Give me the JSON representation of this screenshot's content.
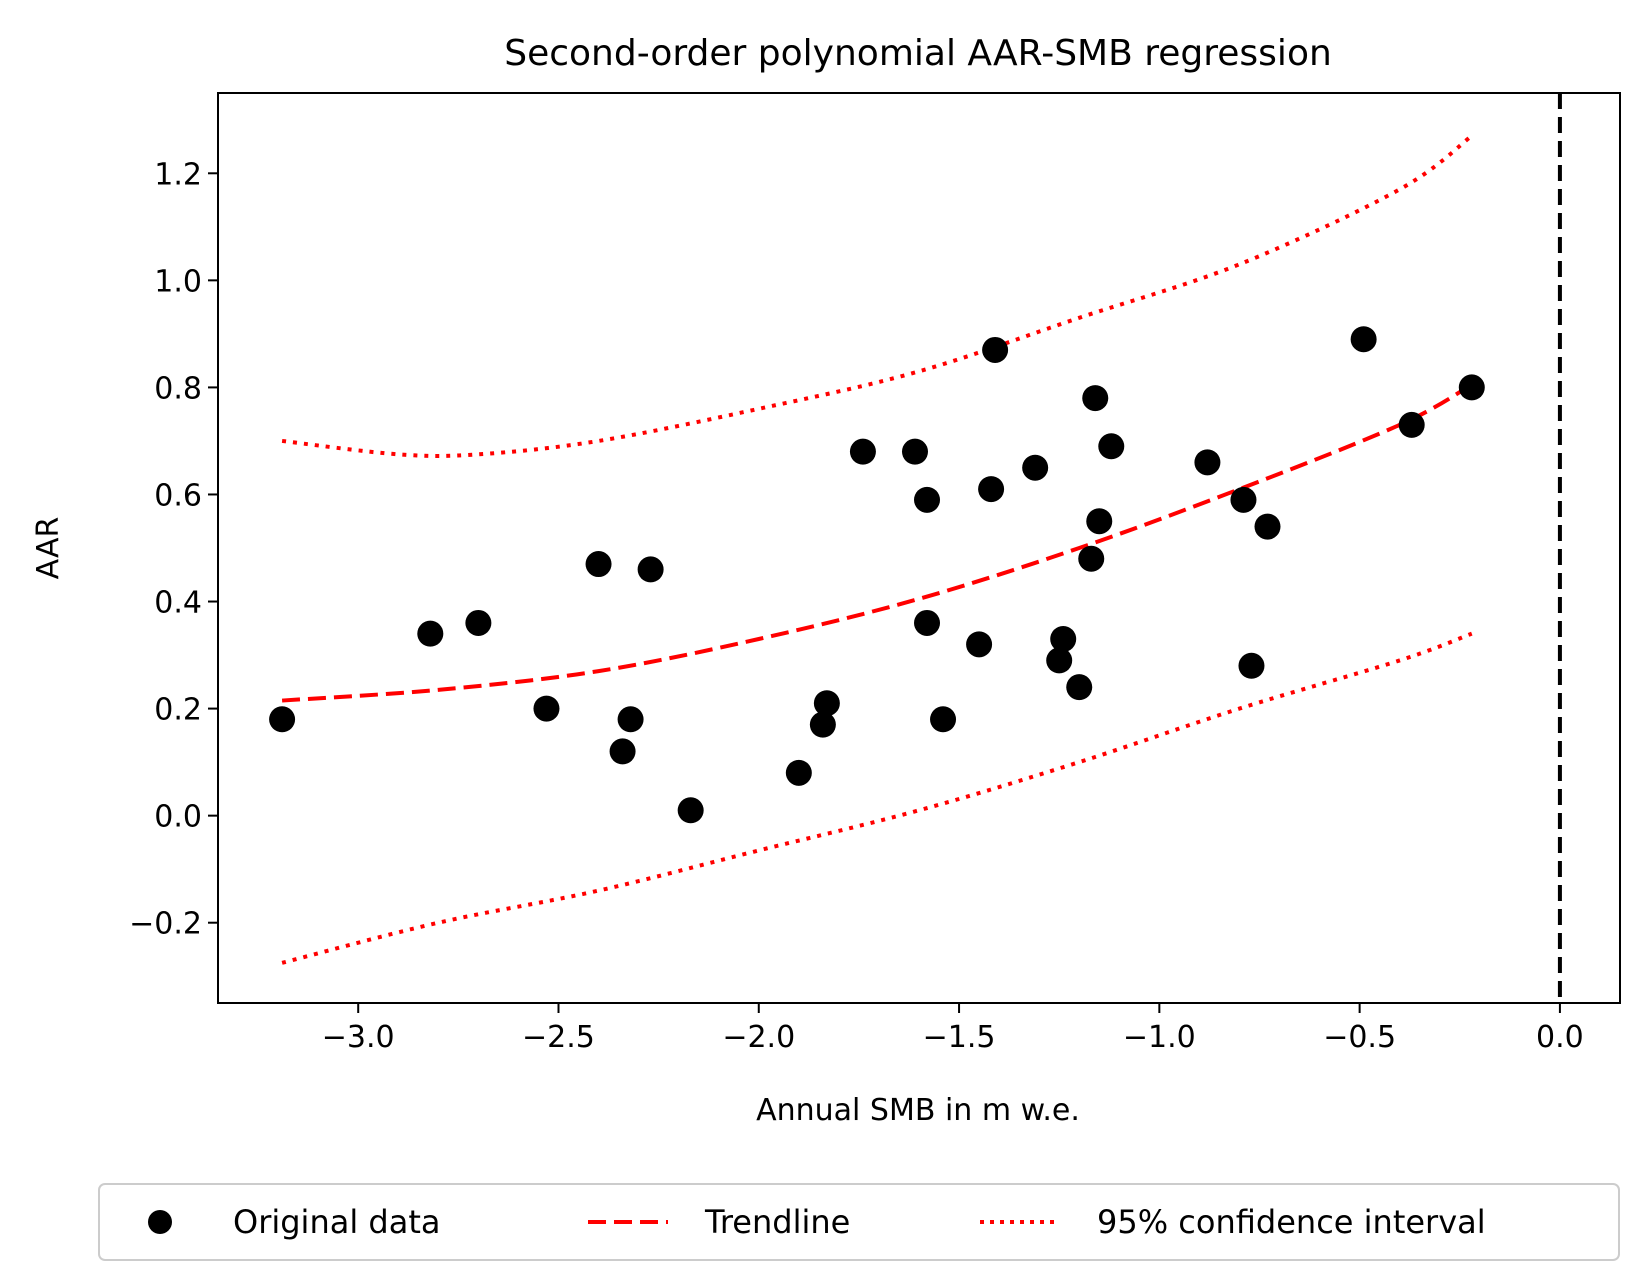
{
  "chart_data": {
    "type": "scatter",
    "title": "Second-order polynomial AAR-SMB regression",
    "xlabel": "Annual SMB in m w.e.",
    "ylabel": "AAR",
    "xlim": [
      -3.35,
      0.15
    ],
    "ylim": [
      -0.35,
      1.35
    ],
    "xticks": [
      -3.0,
      -2.5,
      -2.0,
      -1.5,
      -1.0,
      -0.5,
      0.0
    ],
    "xtick_labels": [
      "−3.0",
      "−2.5",
      "−2.0",
      "−1.5",
      "−1.0",
      "−0.5",
      "0.0"
    ],
    "yticks": [
      -0.2,
      0.0,
      0.2,
      0.4,
      0.6,
      0.8,
      1.0,
      1.2
    ],
    "ytick_labels": [
      "−0.2",
      "0.0",
      "0.2",
      "0.4",
      "0.6",
      "0.8",
      "1.0",
      "1.2"
    ],
    "grid": false,
    "legend_position": "below",
    "vline": {
      "x": 0.0,
      "color": "#000000",
      "style": "dashed"
    },
    "series": [
      {
        "name": "Original data",
        "kind": "scatter",
        "color": "#000000",
        "points": [
          [
            -3.19,
            0.18
          ],
          [
            -2.82,
            0.34
          ],
          [
            -2.7,
            0.36
          ],
          [
            -2.53,
            0.2
          ],
          [
            -2.4,
            0.47
          ],
          [
            -2.34,
            0.12
          ],
          [
            -2.32,
            0.18
          ],
          [
            -2.27,
            0.46
          ],
          [
            -2.17,
            0.01
          ],
          [
            -1.9,
            0.08
          ],
          [
            -1.84,
            0.17
          ],
          [
            -1.83,
            0.21
          ],
          [
            -1.74,
            0.68
          ],
          [
            -1.61,
            0.68
          ],
          [
            -1.58,
            0.59
          ],
          [
            -1.58,
            0.36
          ],
          [
            -1.54,
            0.18
          ],
          [
            -1.45,
            0.32
          ],
          [
            -1.42,
            0.61
          ],
          [
            -1.41,
            0.87
          ],
          [
            -1.31,
            0.65
          ],
          [
            -1.25,
            0.29
          ],
          [
            -1.24,
            0.33
          ],
          [
            -1.2,
            0.24
          ],
          [
            -1.17,
            0.48
          ],
          [
            -1.16,
            0.78
          ],
          [
            -1.15,
            0.55
          ],
          [
            -1.12,
            0.69
          ],
          [
            -0.88,
            0.66
          ],
          [
            -0.79,
            0.59
          ],
          [
            -0.77,
            0.28
          ],
          [
            -0.73,
            0.54
          ],
          [
            -0.49,
            0.89
          ],
          [
            -0.37,
            0.73
          ],
          [
            -0.22,
            0.8
          ]
        ]
      },
      {
        "name": "Trendline",
        "kind": "line",
        "color": "#ff0000",
        "style": "dashed",
        "x": [
          -3.19,
          -2.8,
          -2.4,
          -2.0,
          -1.6,
          -1.2,
          -0.8,
          -0.4,
          -0.22
        ],
        "y": [
          0.215,
          0.235,
          0.27,
          0.33,
          0.405,
          0.5,
          0.61,
          0.73,
          0.805
        ]
      },
      {
        "name": "95% confidence interval",
        "kind": "line",
        "color": "#ff0000",
        "style": "dotted",
        "x": [
          -3.19,
          -2.9,
          -2.7,
          -2.4,
          -2.0,
          -1.6,
          -1.2,
          -0.8,
          -0.4,
          -0.22
        ],
        "y": [
          0.7,
          0.675,
          0.675,
          0.7,
          0.76,
          0.83,
          0.93,
          1.03,
          1.17,
          1.27
        ]
      },
      {
        "name": "95% confidence interval",
        "kind": "line",
        "color": "#ff0000",
        "style": "dotted",
        "show_in_legend": false,
        "x": [
          -3.19,
          -2.8,
          -2.4,
          -2.0,
          -1.6,
          -1.2,
          -0.8,
          -0.4,
          -0.22
        ],
        "y": [
          -0.275,
          -0.2,
          -0.14,
          -0.065,
          0.01,
          0.1,
          0.2,
          0.29,
          0.34
        ]
      }
    ]
  }
}
